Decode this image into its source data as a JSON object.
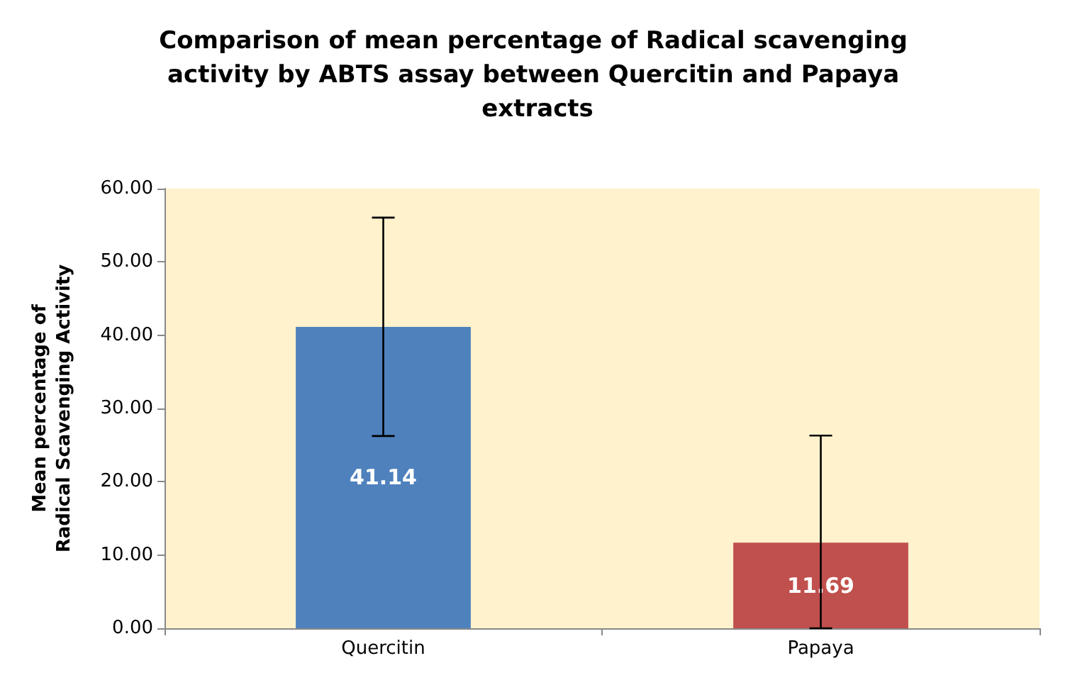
{
  "chart_data": {
    "type": "bar",
    "title": "Comparison of mean percentage of Radical scavenging activity by ABTS assay between Quercitin and Papaya extracts",
    "ylabel": "Mean percentage of\nRadical Scavenging Activity",
    "categories": [
      "Quercitin",
      "Papaya"
    ],
    "values": [
      41.14,
      11.69
    ],
    "colors": [
      "#4f81bd",
      "#c0504d"
    ],
    "errors": [
      14.9,
      [
        0,
        26.3
      ]
    ],
    "data_labels": true,
    "ylim": [
      0,
      60
    ],
    "yticks": [
      {
        "value": 0,
        "label": "0.00"
      },
      {
        "value": 10,
        "label": "10.00"
      },
      {
        "value": 20,
        "label": "20.00"
      },
      {
        "value": 30,
        "label": "30.00"
      },
      {
        "value": 40,
        "label": "40.00"
      },
      {
        "value": 50,
        "label": "50.00"
      },
      {
        "value": 60,
        "label": "60.00"
      }
    ],
    "grid": false
  }
}
